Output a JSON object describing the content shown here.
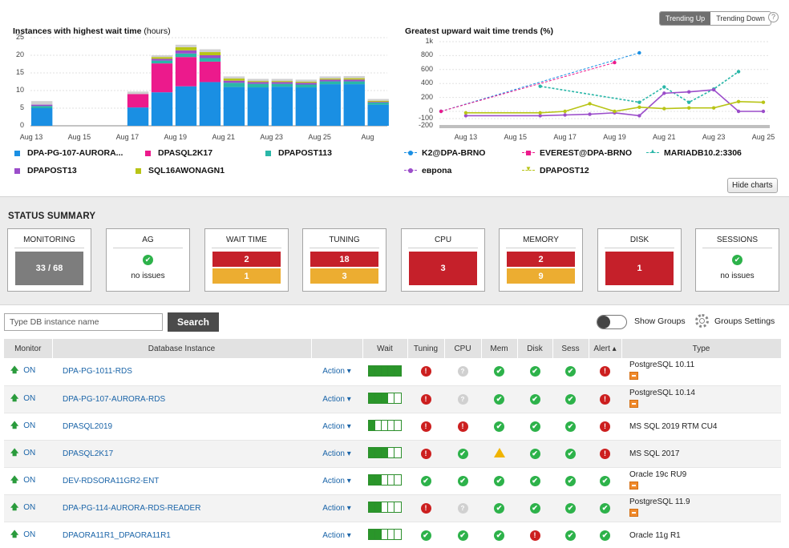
{
  "trend_toggle": {
    "up": "Trending Up",
    "down": "Trending Down",
    "help": "?"
  },
  "hide_charts": "Hide charts",
  "chart_data": [
    {
      "type": "bar",
      "title": "Instances with highest wait time",
      "title_unit": "(hours)",
      "stacked": true,
      "ylim": [
        0,
        25
      ],
      "yticks": [
        0,
        5,
        10,
        15,
        20,
        25
      ],
      "x_tick_labels": [
        "Aug 13",
        "Aug 15",
        "Aug 17",
        "Aug 19",
        "Aug 21",
        "Aug 23",
        "Aug 25",
        "Aug"
      ],
      "categories": [
        "Aug 13",
        "Aug 14",
        "Aug 15",
        "Aug 16",
        "Aug 17",
        "Aug 18",
        "Aug 19",
        "Aug 20",
        "Aug 21",
        "Aug 22",
        "Aug 23",
        "Aug 24",
        "Aug 25",
        "Aug 26",
        "Aug 27"
      ],
      "series": [
        {
          "name": "DPA-PG-107-AURORA...",
          "color": "#1a8fe3",
          "values": [
            5,
            0,
            0,
            0,
            5.2,
            9.5,
            11.2,
            12.4,
            11,
            10.9,
            11.1,
            10.9,
            11.8,
            11.8,
            6
          ]
        },
        {
          "name": "DPASQL2K17",
          "color": "#ec1a8c",
          "values": [
            0,
            0,
            0,
            0,
            3.8,
            8.2,
            8.3,
            5.8,
            0,
            0,
            0,
            0,
            0,
            0,
            0
          ]
        },
        {
          "name": "DPAPOST113",
          "color": "#2ab7a8",
          "values": [
            0.6,
            0,
            0,
            0,
            0,
            0.8,
            1,
            1,
            1.2,
            1,
            0.8,
            0.8,
            0.8,
            0.8,
            0.6
          ]
        },
        {
          "name": "DPAPOST13",
          "color": "#9b4dca",
          "values": [
            0.4,
            0,
            0,
            0,
            0,
            0.5,
            0.9,
            0.8,
            0.6,
            0.5,
            0.5,
            0.5,
            0.5,
            0.5,
            0.2
          ]
        },
        {
          "name": "SQL16AWONAGN1",
          "color": "#b8c416",
          "values": [
            0,
            0,
            0,
            0,
            0,
            0.5,
            0.9,
            0.9,
            0.6,
            0.3,
            0.3,
            0.3,
            0.3,
            0.4,
            0.3
          ]
        },
        {
          "name": "",
          "color": "#cfcfcf",
          "values": [
            1,
            0,
            0,
            0,
            0.7,
            0.5,
            0.7,
            0.8,
            0.6,
            0.6,
            0.6,
            0.6,
            0.6,
            0.6,
            0.5
          ]
        }
      ],
      "grid": true
    },
    {
      "type": "line",
      "title": "Greatest upward wait time trends (%)",
      "ylim": [
        -200,
        1000
      ],
      "yticks": [
        -200,
        -100,
        0,
        200,
        400,
        600,
        800,
        1000
      ],
      "ytick_labels": [
        "-200",
        "-100",
        "0",
        "200",
        "400",
        "600",
        "800",
        "1k"
      ],
      "x_tick_labels": [
        "Aug 13",
        "Aug 15",
        "Aug 17",
        "Aug 19",
        "Aug 21",
        "Aug 23",
        "Aug 25"
      ],
      "x": [
        "Aug 12",
        "Aug 13",
        "Aug 14",
        "Aug 15",
        "Aug 16",
        "Aug 17",
        "Aug 18",
        "Aug 19",
        "Aug 20",
        "Aug 21",
        "Aug 22",
        "Aug 23",
        "Aug 24",
        "Aug 25"
      ],
      "series": [
        {
          "name": "K2@DPA-BRNO",
          "color": "#1a8fe3",
          "values": [
            0,
            null,
            null,
            null,
            null,
            null,
            null,
            null,
            840,
            null,
            null,
            null,
            null,
            null
          ]
        },
        {
          "name": "EVEREST@DPA-BRNO",
          "color": "#ec1a8c",
          "values": [
            0,
            null,
            null,
            null,
            null,
            null,
            null,
            700,
            null,
            null,
            null,
            null,
            null,
            null
          ]
        },
        {
          "name": "MARIADB10.2:3306",
          "color": "#2ab7a8",
          "values": [
            null,
            null,
            null,
            null,
            360,
            null,
            null,
            null,
            130,
            350,
            130,
            320,
            570,
            null
          ]
        },
        {
          "name": "евpona",
          "color": "#9b4dca",
          "values": [
            null,
            -60,
            null,
            null,
            -60,
            -50,
            -40,
            -20,
            -60,
            260,
            280,
            310,
            0,
            0
          ]
        },
        {
          "name": "DPAPOST12",
          "color": "#b8c416",
          "values": [
            null,
            -20,
            null,
            null,
            -20,
            0,
            110,
            0,
            60,
            40,
            50,
            50,
            140,
            130
          ]
        }
      ],
      "grid": true
    }
  ],
  "status_summary": {
    "title": "STATUS SUMMARY",
    "cards": [
      {
        "label": "MONITORING",
        "type": "block",
        "blocks": [
          {
            "text": "33 / 68",
            "color": "#7d7d7d"
          }
        ]
      },
      {
        "label": "AG",
        "type": "ok",
        "message": "no issues"
      },
      {
        "label": "WAIT TIME",
        "type": "split",
        "blocks": [
          {
            "text": "2",
            "color": "#c5202a"
          },
          {
            "text": "1",
            "color": "#ecad31"
          }
        ]
      },
      {
        "label": "TUNING",
        "type": "split",
        "blocks": [
          {
            "text": "18",
            "color": "#c5202a"
          },
          {
            "text": "3",
            "color": "#ecad31"
          }
        ]
      },
      {
        "label": "CPU",
        "type": "block",
        "blocks": [
          {
            "text": "3",
            "color": "#c5202a"
          }
        ]
      },
      {
        "label": "MEMORY",
        "type": "split",
        "blocks": [
          {
            "text": "2",
            "color": "#c5202a"
          },
          {
            "text": "9",
            "color": "#ecad31"
          }
        ]
      },
      {
        "label": "DISK",
        "type": "block",
        "blocks": [
          {
            "text": "1",
            "color": "#c5202a"
          }
        ]
      },
      {
        "label": "SESSIONS",
        "type": "ok",
        "message": "no issues"
      }
    ]
  },
  "search": {
    "placeholder": "Type DB instance name",
    "button": "Search"
  },
  "show_groups": "Show Groups",
  "groups_settings": "Groups Settings",
  "table": {
    "columns": [
      "Monitor",
      "Database Instance",
      "",
      "Wait",
      "Tuning",
      "CPU",
      "Mem",
      "Disk",
      "Sess",
      "Alert ▴",
      "Type"
    ],
    "rows": [
      {
        "monitor": "ON",
        "instance": "DPA-PG-1011-RDS",
        "action": "Action ▾",
        "wait": 5,
        "tuning": "err",
        "cpu": "unk",
        "mem": "ok",
        "disk": "ok",
        "sess": "ok",
        "alert": "err",
        "type": "PostgreSQL 10.11",
        "type_icon": true
      },
      {
        "monitor": "ON",
        "instance": "DPA-PG-107-AURORA-RDS",
        "action": "Action ▾",
        "wait": 3,
        "tuning": "err",
        "cpu": "unk",
        "mem": "ok",
        "disk": "ok",
        "sess": "ok",
        "alert": "err",
        "type": "PostgreSQL 10.14",
        "type_icon": true
      },
      {
        "monitor": "ON",
        "instance": "DPASQL2019",
        "action": "Action ▾",
        "wait": 1,
        "tuning": "err",
        "cpu": "err",
        "mem": "ok",
        "disk": "ok",
        "sess": "ok",
        "alert": "err",
        "type": "MS SQL 2019 RTM CU4",
        "type_icon": false
      },
      {
        "monitor": "ON",
        "instance": "DPASQL2K17",
        "action": "Action ▾",
        "wait": 3,
        "tuning": "err",
        "cpu": "ok",
        "mem": "warn",
        "disk": "ok",
        "sess": "ok",
        "alert": "err",
        "type": "MS SQL 2017",
        "type_icon": false
      },
      {
        "monitor": "ON",
        "instance": "DEV-RDSORA11GR2-ENT",
        "action": "Action ▾",
        "wait": 2,
        "tuning": "ok",
        "cpu": "ok",
        "mem": "ok",
        "disk": "ok",
        "sess": "ok",
        "alert": "ok",
        "type": "Oracle 19c RU9",
        "type_icon": true
      },
      {
        "monitor": "ON",
        "instance": "DPA-PG-114-AURORA-RDS-READER",
        "action": "Action ▾",
        "wait": 2,
        "tuning": "err",
        "cpu": "unk",
        "mem": "ok",
        "disk": "ok",
        "sess": "ok",
        "alert": "ok",
        "type": "PostgreSQL 11.9",
        "type_icon": true
      },
      {
        "monitor": "ON",
        "instance": "DPAORA11R1_DPAORA11R1",
        "action": "Action ▾",
        "wait": 2,
        "tuning": "ok",
        "cpu": "ok",
        "mem": "ok",
        "disk": "err",
        "sess": "ok",
        "alert": "ok",
        "type": "Oracle 11g R1",
        "type_icon": false
      }
    ]
  }
}
